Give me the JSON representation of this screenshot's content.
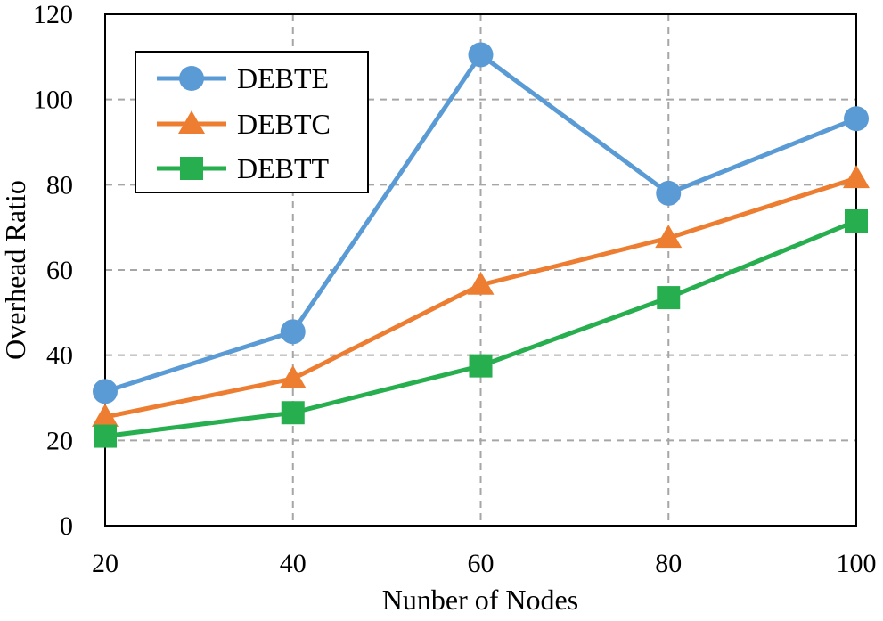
{
  "chart_data": {
    "type": "line",
    "title": "",
    "xlabel": "Nunber of Nodes",
    "ylabel": "Overhead Ratio",
    "x": [
      20,
      40,
      60,
      80,
      100
    ],
    "x_ticks": [
      "20",
      "40",
      "60",
      "80",
      "100"
    ],
    "y_ticks": [
      "0",
      "20",
      "40",
      "60",
      "80",
      "100",
      "120"
    ],
    "xlim": [
      20,
      100
    ],
    "ylim": [
      0,
      120
    ],
    "grid": true,
    "legend_position": "top-left",
    "series": [
      {
        "name": "DEBTE",
        "marker": "circle",
        "color": "#5B9BD5",
        "values": [
          31.5,
          45.5,
          110.5,
          78,
          95.5
        ]
      },
      {
        "name": "DEBTC",
        "marker": "triangle",
        "color": "#ED7D31",
        "values": [
          25.5,
          34.5,
          56.5,
          67.5,
          81.5
        ]
      },
      {
        "name": "DEBTT",
        "marker": "square",
        "color": "#27AE4E",
        "values": [
          21,
          26.5,
          37.5,
          53.5,
          71.5
        ]
      }
    ]
  }
}
